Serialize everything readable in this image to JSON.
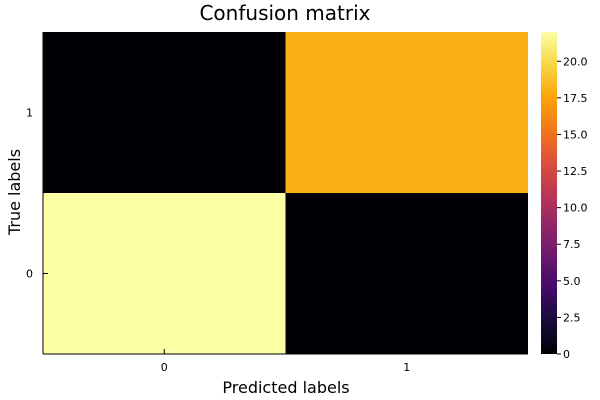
{
  "chart_data": {
    "type": "heatmap",
    "title": "Confusion matrix",
    "xlabel": "Predicted labels",
    "ylabel": "True labels",
    "x_categories": [
      "0",
      "1"
    ],
    "y_categories": [
      "0",
      "1"
    ],
    "matrix": [
      {
        "true_label": "1",
        "values": [
          0,
          18
        ]
      },
      {
        "true_label": "0",
        "values": [
          22,
          0
        ]
      }
    ],
    "colorbar": {
      "min": 0,
      "max": 22,
      "ticks": [
        "0",
        "2.5",
        "5.0",
        "7.5",
        "10.0",
        "12.5",
        "15.0",
        "17.5",
        "20.0"
      ]
    },
    "colormap": "inferno",
    "grid": false
  }
}
